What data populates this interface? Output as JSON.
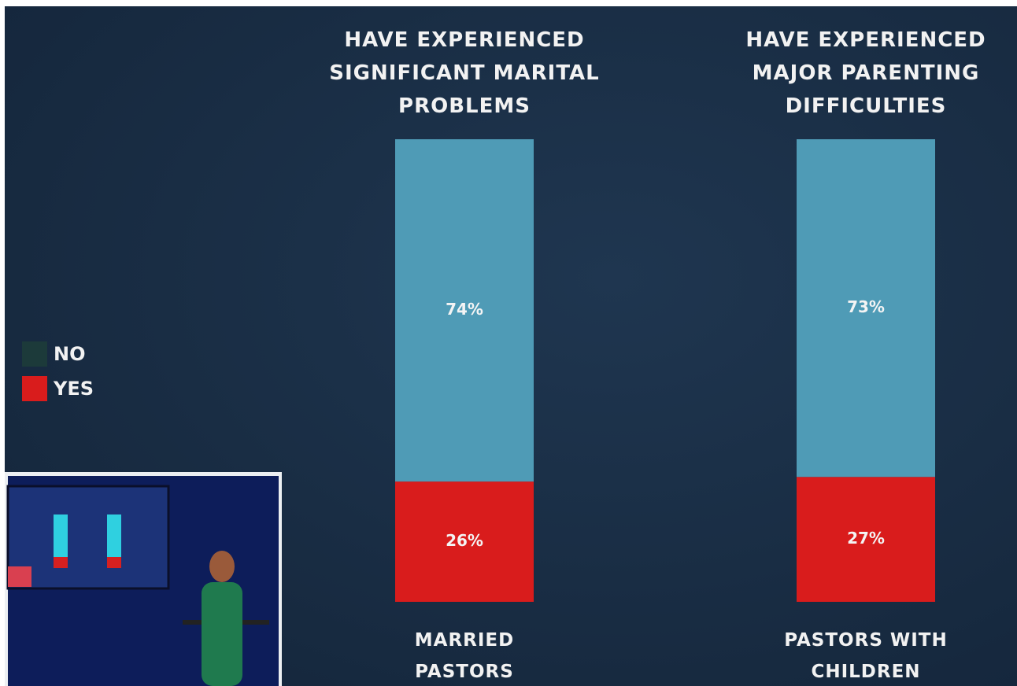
{
  "chart_data": {
    "type": "stacked-bar",
    "panel_titles": [
      "HAVE EXPERIENCED SIGNIFICANT MARITAL PROBLEMS",
      "HAVE EXPERIENCED MAJOR PARENTING DIFFICULTIES"
    ],
    "categories": [
      "MARRIED PASTORS",
      "PASTORS WITH CHILDREN"
    ],
    "series": [
      {
        "name": "YES",
        "color": "#d91c1c",
        "legend_color": "#d91c1c",
        "values": [
          26,
          27
        ],
        "value_labels": [
          "26%",
          "27%"
        ]
      },
      {
        "name": "NO",
        "color": "#4f9bb6",
        "legend_color": "#1c3a3a",
        "values": [
          74,
          73
        ],
        "value_labels": [
          "74%",
          "73%"
        ]
      }
    ],
    "ylim": [
      0,
      100
    ]
  }
}
